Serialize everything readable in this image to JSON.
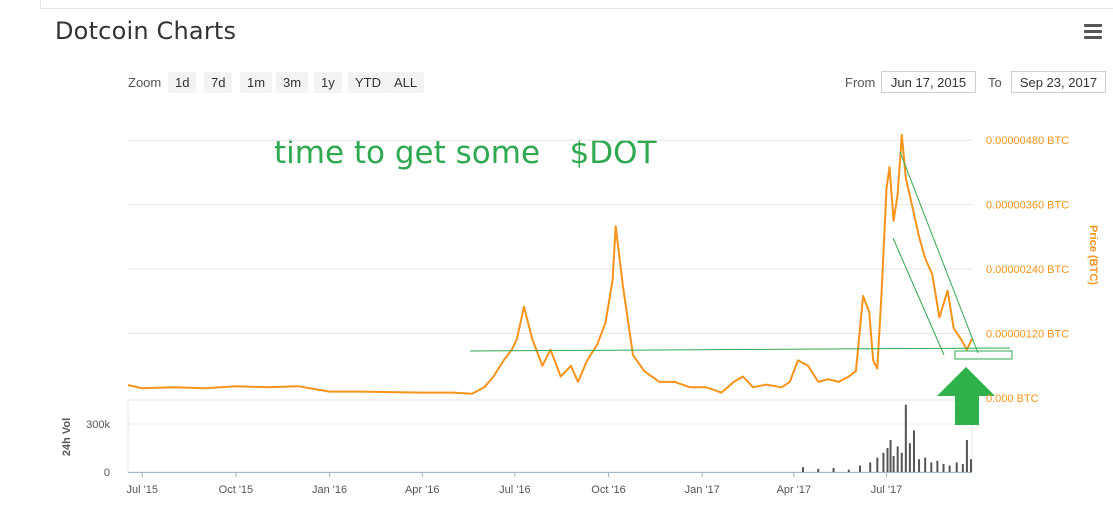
{
  "title": "Dotcoin Charts",
  "toolbar": {
    "zoom_label": "Zoom",
    "zoom_buttons": [
      "1d",
      "7d",
      "1m",
      "3m",
      "1y",
      "YTD",
      "ALL"
    ],
    "from_label": "From",
    "from_value": "Jun 17, 2015",
    "to_label": "To",
    "to_value": "Sep 23, 2017"
  },
  "annotation": "time to get some   $DOT",
  "colors": {
    "price": "#f7931a",
    "annotation": "#2fa84f",
    "volume": "#555555"
  },
  "icons": {
    "menu": "hamburger-menu-icon",
    "arrow": "green-up-arrow-icon"
  },
  "chart_data": {
    "type": "line",
    "xlabel": "",
    "ylabel": "Price (BTC)",
    "y_ticks": [
      "0.00000480 BTC",
      "0.00000360 BTC",
      "0.00000240 BTC",
      "0.00000120 BTC",
      "0.000 BTC"
    ],
    "y_tick_values": [
      4.8e-06,
      3.6e-06,
      2.4e-06,
      1.2e-06,
      0
    ],
    "ylim": [
      0,
      5.4e-06
    ],
    "x_ticks": [
      "Jul '15",
      "Oct '15",
      "Jan '16",
      "Apr '16",
      "Jul '16",
      "Oct '16",
      "Jan '17",
      "Apr '17",
      "Jul '17"
    ],
    "x_tick_dates": [
      "2015-07-01",
      "2015-10-01",
      "2016-01-01",
      "2016-04-01",
      "2016-07-01",
      "2016-10-01",
      "2017-01-01",
      "2017-04-01",
      "2017-07-01"
    ],
    "xlim": [
      "2015-06-17",
      "2017-09-23"
    ],
    "grid": true,
    "series": [
      {
        "x": [
          "2015-06-17",
          "2015-07-01",
          "2015-08-01",
          "2015-09-01",
          "2015-10-01",
          "2015-11-01",
          "2015-12-01",
          "2016-01-01",
          "2016-02-01",
          "2016-03-01",
          "2016-04-01",
          "2016-05-01",
          "2016-05-20",
          "2016-06-01",
          "2016-06-10",
          "2016-06-20",
          "2016-06-28",
          "2016-07-03",
          "2016-07-10",
          "2016-07-18",
          "2016-07-28",
          "2016-08-05",
          "2016-08-15",
          "2016-08-25",
          "2016-09-01",
          "2016-09-10",
          "2016-09-20",
          "2016-09-28",
          "2016-10-05",
          "2016-10-08",
          "2016-10-15",
          "2016-10-25",
          "2016-11-05",
          "2016-11-20",
          "2016-12-05",
          "2016-12-20",
          "2017-01-05",
          "2017-01-20",
          "2017-02-01",
          "2017-02-10",
          "2017-02-20",
          "2017-03-05",
          "2017-03-20",
          "2017-03-28",
          "2017-04-05",
          "2017-04-15",
          "2017-04-25",
          "2017-05-05",
          "2017-05-15",
          "2017-05-25",
          "2017-06-01",
          "2017-06-08",
          "2017-06-14",
          "2017-06-18",
          "2017-06-22",
          "2017-06-26",
          "2017-07-01",
          "2017-07-04",
          "2017-07-08",
          "2017-07-12",
          "2017-07-16",
          "2017-07-20",
          "2017-07-26",
          "2017-08-02",
          "2017-08-08",
          "2017-08-15",
          "2017-08-22",
          "2017-08-30",
          "2017-09-05",
          "2017-09-12",
          "2017-09-18",
          "2017-09-23"
        ],
        "values": [
          2.4e-07,
          1.8e-07,
          2e-07,
          1.8e-07,
          2.2e-07,
          2e-07,
          2.2e-07,
          1.2e-07,
          1.2e-07,
          1.1e-07,
          1e-07,
          1e-07,
          8e-08,
          2e-07,
          4e-07,
          7e-07,
          9e-07,
          1.1e-06,
          1.7e-06,
          1.1e-06,
          6e-07,
          9e-07,
          4e-07,
          6e-07,
          3e-07,
          7e-07,
          1e-06,
          1.4e-06,
          2.2e-06,
          3.2e-06,
          2.1e-06,
          8e-07,
          5e-07,
          3e-07,
          3e-07,
          2e-07,
          2e-07,
          1e-07,
          3e-07,
          4e-07,
          2e-07,
          2.5e-07,
          2e-07,
          3e-07,
          7e-07,
          6e-07,
          3e-07,
          3.5e-07,
          3e-07,
          4e-07,
          5e-07,
          1.9e-06,
          1.6e-06,
          7e-07,
          5.5e-07,
          1.9e-06,
          3.9e-06,
          4.3e-06,
          3.3e-06,
          3.8e-06,
          4.9e-06,
          4.1e-06,
          3.6e-06,
          3e-06,
          2.6e-06,
          2.3e-06,
          1.5e-06,
          2e-06,
          1.3e-06,
          1.1e-06,
          9e-07,
          1.1e-06
        ]
      }
    ],
    "volume": {
      "label": "24h Vol",
      "y_ticks": [
        "300k",
        "0"
      ],
      "y_tick_values": [
        300000,
        0
      ],
      "ylim": [
        0,
        450000
      ],
      "x": [
        "2017-04-10",
        "2017-04-25",
        "2017-05-10",
        "2017-05-25",
        "2017-06-05",
        "2017-06-15",
        "2017-06-22",
        "2017-06-28",
        "2017-07-02",
        "2017-07-05",
        "2017-07-08",
        "2017-07-12",
        "2017-07-16",
        "2017-07-20",
        "2017-07-24",
        "2017-07-28",
        "2017-08-02",
        "2017-08-08",
        "2017-08-14",
        "2017-08-20",
        "2017-08-26",
        "2017-09-01",
        "2017-09-08",
        "2017-09-14",
        "2017-09-18",
        "2017-09-22"
      ],
      "values": [
        30000,
        20000,
        25000,
        15000,
        40000,
        60000,
        90000,
        120000,
        150000,
        200000,
        100000,
        160000,
        120000,
        420000,
        180000,
        260000,
        80000,
        90000,
        60000,
        70000,
        50000,
        40000,
        60000,
        50000,
        200000,
        80000
      ]
    }
  }
}
